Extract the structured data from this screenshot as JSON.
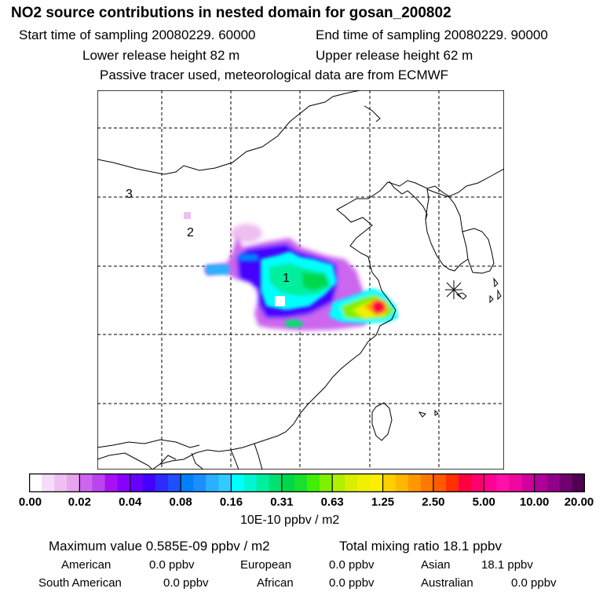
{
  "header": {
    "title": "NO2 source contributions in nested domain for gosan_200802",
    "start_time": "Start time of sampling 20080229. 60000",
    "end_time": "End time of sampling 20080229. 90000",
    "lower_release": "Lower release height   82 m",
    "upper_release": "Upper release height   62 m",
    "tracer_note": "Passive tracer used, meteorological data are from ECMWF"
  },
  "map": {
    "source_labels": [
      "1",
      "2",
      "3"
    ],
    "receptor_marker": "asterisk-icon"
  },
  "colorbar": {
    "ticks": [
      "0.00",
      "0.02",
      "0.04",
      "0.08",
      "0.16",
      "0.31",
      "0.63",
      "1.25",
      "2.50",
      "5.00",
      "10.00",
      "20.00"
    ],
    "colors": [
      "#ffffff",
      "#f5dcf7",
      "#eec0f1",
      "#e7a3ee",
      "#cc66ee",
      "#bb44f0",
      "#a810f2",
      "#8800ff",
      "#6600ff",
      "#4400ff",
      "#2f2bff",
      "#1e50ff",
      "#007fff",
      "#1a90ff",
      "#2ab0ff",
      "#30ccff",
      "#00ffff",
      "#00f5d0",
      "#00ef9e",
      "#00e070",
      "#00d84a",
      "#18e030",
      "#40f000",
      "#80f000",
      "#b0f000",
      "#d8f000",
      "#f0f000",
      "#ffee00",
      "#ffd000",
      "#ffb800",
      "#ff9800",
      "#ff7800",
      "#ff5a00",
      "#ff3000",
      "#ff0040",
      "#ff0070",
      "#ff0090",
      "#ff10a8",
      "#ee08a0",
      "#d0009e",
      "#b0009a",
      "#900088",
      "#700070",
      "#500050"
    ],
    "units": "10E-10 ppbv / m2"
  },
  "summary": {
    "max_value": "Maximum value  0.585E-09 ppbv / m2",
    "total_mixing": "Total mixing ratio       18.1 ppbv",
    "regions": [
      {
        "name": "American",
        "value": "0.0 ppbv"
      },
      {
        "name": "European",
        "value": "0.0 ppbv"
      },
      {
        "name": "Asian",
        "value": "18.1 ppbv"
      },
      {
        "name": "South American",
        "value": "0.0 ppbv"
      },
      {
        "name": "African",
        "value": "0.0 ppbv"
      },
      {
        "name": "Australian",
        "value": "0.0 ppbv"
      }
    ]
  }
}
